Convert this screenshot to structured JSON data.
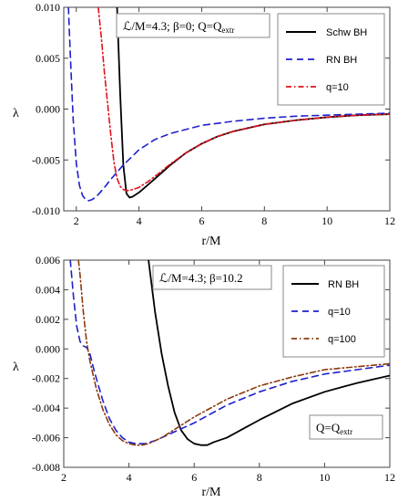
{
  "chart_data": [
    {
      "type": "line",
      "xlabel": "r/M",
      "ylabel": "λ",
      "xlim": [
        1.6,
        12
      ],
      "ylim": [
        -0.01,
        0.01
      ],
      "xticks": [
        "2",
        "4",
        "6",
        "8",
        "10",
        "12"
      ],
      "xtick_values": [
        2,
        4,
        6,
        8,
        10,
        12
      ],
      "yticks": [
        "0.010",
        "0.005",
        "0.000",
        "-0.005",
        "-0.010"
      ],
      "ytick_values": [
        0.01,
        0.005,
        0.0,
        -0.005,
        -0.01
      ],
      "annotation": "ℒ/M=4.3; β=0; Q=Q",
      "annotation_sub": "extr",
      "legend_position": "top-right",
      "series": [
        {
          "name": "Schw BH",
          "color": "#000000",
          "dash": "solid",
          "x": [
            3.3,
            3.4,
            3.5,
            3.6,
            3.7,
            3.8,
            4.0,
            4.3,
            4.6,
            5.0,
            5.5,
            6.0,
            6.5,
            7.0,
            8.0,
            9.0,
            10.0,
            11.0,
            12.0
          ],
          "y": [
            0.01,
            0.0015,
            -0.0055,
            -0.0083,
            -0.0087,
            -0.0086,
            -0.0082,
            -0.0074,
            -0.0066,
            -0.0055,
            -0.0043,
            -0.0034,
            -0.0027,
            -0.0022,
            -0.0015,
            -0.0011,
            -0.0008,
            -0.0006,
            -0.0005
          ]
        },
        {
          "name": "RN BH",
          "color": "#1f1fcf",
          "dash": "7,5",
          "x": [
            1.75,
            1.8,
            1.9,
            2.0,
            2.1,
            2.2,
            2.3,
            2.4,
            2.5,
            2.6,
            2.7,
            2.9,
            3.1,
            3.5,
            4.0,
            4.5,
            5.0,
            6.0,
            7.0,
            8.0,
            9.0,
            10.0,
            11.0,
            12.0
          ],
          "y": [
            0.01,
            0.006,
            -0.001,
            -0.0053,
            -0.0075,
            -0.0085,
            -0.0089,
            -0.009,
            -0.0089,
            -0.0087,
            -0.0084,
            -0.0077,
            -0.0069,
            -0.0055,
            -0.004,
            -0.003,
            -0.0024,
            -0.0016,
            -0.0012,
            -0.0009,
            -0.0007,
            -0.0006,
            -0.0005,
            -0.0004
          ]
        },
        {
          "name": "q=10",
          "color": "#e0111a",
          "dash": "6,3,1.5,3",
          "x": [
            2.7,
            2.8,
            2.9,
            3.0,
            3.1,
            3.2,
            3.3,
            3.4,
            3.5,
            3.6,
            3.7,
            4.0,
            4.3,
            4.6,
            5.0,
            5.5,
            6.0,
            6.5,
            7.0,
            8.0,
            9.0,
            10.0,
            11.0,
            12.0
          ],
          "y": [
            0.01,
            0.007,
            0.0035,
            0.0005,
            -0.0025,
            -0.0052,
            -0.0068,
            -0.0076,
            -0.0079,
            -0.008,
            -0.008,
            -0.0077,
            -0.0071,
            -0.0064,
            -0.0054,
            -0.0043,
            -0.0034,
            -0.0027,
            -0.0022,
            -0.0015,
            -0.0011,
            -0.0008,
            -0.0006,
            -0.0005
          ]
        }
      ]
    },
    {
      "type": "line",
      "xlabel": "r/M",
      "ylabel": "λ",
      "xlim": [
        2,
        12
      ],
      "ylim": [
        -0.008,
        0.006
      ],
      "xticks": [
        "2",
        "4",
        "6",
        "8",
        "10",
        "12"
      ],
      "xtick_values": [
        2,
        4,
        6,
        8,
        10,
        12
      ],
      "yticks": [
        "0.006",
        "0.004",
        "0.002",
        "0.000",
        "-0.002",
        "-0.004",
        "-0.006",
        "-0.008"
      ],
      "ytick_values": [
        0.006,
        0.004,
        0.002,
        0.0,
        -0.002,
        -0.004,
        -0.006,
        -0.008
      ],
      "annotation": "ℒ/M=4.3; β=10.2",
      "annotation2": "Q=Q",
      "annotation2_sub": "extr",
      "legend_position": "top-right",
      "series": [
        {
          "name": "RN BH",
          "color": "#000000",
          "dash": "solid",
          "x": [
            4.6,
            4.8,
            5.0,
            5.2,
            5.4,
            5.6,
            5.8,
            6.0,
            6.2,
            6.4,
            6.6,
            7.0,
            7.5,
            8.0,
            9.0,
            10.0,
            11.0,
            12.0
          ],
          "y": [
            0.006,
            0.0025,
            -0.0003,
            -0.0025,
            -0.0043,
            -0.0055,
            -0.0061,
            -0.0064,
            -0.0065,
            -0.0065,
            -0.0063,
            -0.006,
            -0.0054,
            -0.0048,
            -0.0037,
            -0.0029,
            -0.0023,
            -0.0018
          ]
        },
        {
          "name": "q=10",
          "color": "#1f1fcf",
          "dash": "7,5",
          "x": [
            2.2,
            2.3,
            2.4,
            2.5,
            2.6,
            2.7,
            2.8,
            2.9,
            3.0,
            3.2,
            3.4,
            3.6,
            3.8,
            4.0,
            4.2,
            4.5,
            4.8,
            5.0,
            5.5,
            6.0,
            7.0,
            8.0,
            9.0,
            10.0,
            11.0,
            12.0
          ],
          "y": [
            0.006,
            0.0035,
            0.0015,
            0.0005,
            0.0002,
            0.0001,
            -0.0003,
            -0.0012,
            -0.002,
            -0.0035,
            -0.0047,
            -0.0055,
            -0.006,
            -0.0063,
            -0.0064,
            -0.0064,
            -0.0062,
            -0.006,
            -0.0055,
            -0.005,
            -0.0038,
            -0.0029,
            -0.0022,
            -0.0017,
            -0.0014,
            -0.0011
          ]
        },
        {
          "name": "q=100",
          "color": "#8b3a0e",
          "dash": "6,3,1.5,3",
          "x": [
            2.45,
            2.5,
            2.6,
            2.7,
            2.8,
            3.0,
            3.2,
            3.4,
            3.6,
            3.8,
            4.0,
            4.2,
            4.4,
            4.6,
            5.0,
            5.5,
            6.0,
            7.0,
            8.0,
            9.0,
            10.0,
            11.0,
            12.0
          ],
          "y": [
            0.006,
            0.005,
            0.0025,
            0.0005,
            -0.0008,
            -0.0027,
            -0.0041,
            -0.0051,
            -0.0058,
            -0.0062,
            -0.0064,
            -0.0065,
            -0.0065,
            -0.0064,
            -0.006,
            -0.0053,
            -0.0046,
            -0.0034,
            -0.0025,
            -0.0019,
            -0.0014,
            -0.0012,
            -0.001
          ]
        }
      ]
    }
  ]
}
